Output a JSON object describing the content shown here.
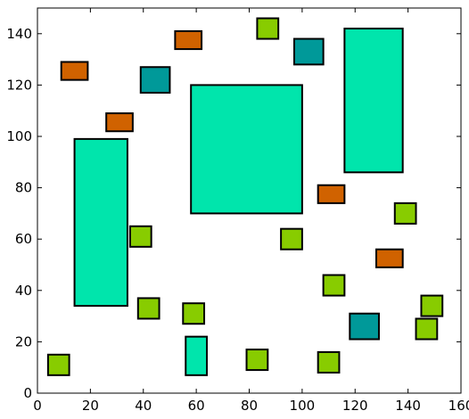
{
  "chart_data": {
    "type": "scatter",
    "title": "",
    "xlabel": "",
    "ylabel": "",
    "xlim": [
      0,
      160
    ],
    "ylim": [
      0,
      150
    ],
    "x_ticks": [
      0,
      20,
      40,
      60,
      80,
      100,
      120,
      140,
      160
    ],
    "y_ticks": [
      0,
      20,
      40,
      60,
      80,
      100,
      120,
      140
    ],
    "grid": false,
    "legend": "none",
    "colors": {
      "teal_green": "#00e5ac",
      "lime": "#88cc00",
      "orange": "#d06200",
      "dark_teal": "#009999",
      "outline": "#000000"
    },
    "rectangles": [
      {
        "x0": 14,
        "x1": 34,
        "y0": 34,
        "y1": 99,
        "color": "teal_green"
      },
      {
        "x0": 58,
        "x1": 100,
        "y0": 70,
        "y1": 120,
        "color": "teal_green"
      },
      {
        "x0": 116,
        "x1": 138,
        "y0": 86,
        "y1": 142,
        "color": "teal_green"
      },
      {
        "x0": 56,
        "x1": 64,
        "y0": 7,
        "y1": 22,
        "color": "teal_green"
      },
      {
        "x0": 4,
        "x1": 12,
        "y0": 7,
        "y1": 15,
        "color": "lime"
      },
      {
        "x0": 38,
        "x1": 46,
        "y0": 29,
        "y1": 37,
        "color": "lime"
      },
      {
        "x0": 35,
        "x1": 43,
        "y0": 57,
        "y1": 65,
        "color": "lime"
      },
      {
        "x0": 55,
        "x1": 63,
        "y0": 27,
        "y1": 35,
        "color": "lime"
      },
      {
        "x0": 79,
        "x1": 87,
        "y0": 9,
        "y1": 17,
        "color": "lime"
      },
      {
        "x0": 83,
        "x1": 91,
        "y0": 138,
        "y1": 146,
        "color": "lime"
      },
      {
        "x0": 92,
        "x1": 100,
        "y0": 56,
        "y1": 64,
        "color": "lime"
      },
      {
        "x0": 106,
        "x1": 114,
        "y0": 8,
        "y1": 16,
        "color": "lime"
      },
      {
        "x0": 108,
        "x1": 116,
        "y0": 38,
        "y1": 46,
        "color": "lime"
      },
      {
        "x0": 135,
        "x1": 143,
        "y0": 66,
        "y1": 74,
        "color": "lime"
      },
      {
        "x0": 143,
        "x1": 151,
        "y0": 21,
        "y1": 29,
        "color": "lime"
      },
      {
        "x0": 145,
        "x1": 153,
        "y0": 30,
        "y1": 38,
        "color": "lime"
      },
      {
        "x0": 9,
        "x1": 19,
        "y0": 122,
        "y1": 129,
        "color": "orange"
      },
      {
        "x0": 26,
        "x1": 36,
        "y0": 102,
        "y1": 109,
        "color": "orange"
      },
      {
        "x0": 52,
        "x1": 62,
        "y0": 134,
        "y1": 141,
        "color": "orange"
      },
      {
        "x0": 106,
        "x1": 116,
        "y0": 74,
        "y1": 81,
        "color": "orange"
      },
      {
        "x0": 128,
        "x1": 138,
        "y0": 49,
        "y1": 56,
        "color": "orange"
      },
      {
        "x0": 39,
        "x1": 50,
        "y0": 117,
        "y1": 127,
        "color": "dark_teal"
      },
      {
        "x0": 97,
        "x1": 108,
        "y0": 128,
        "y1": 138,
        "color": "dark_teal"
      },
      {
        "x0": 118,
        "x1": 129,
        "y0": 21,
        "y1": 31,
        "color": "dark_teal"
      }
    ]
  }
}
